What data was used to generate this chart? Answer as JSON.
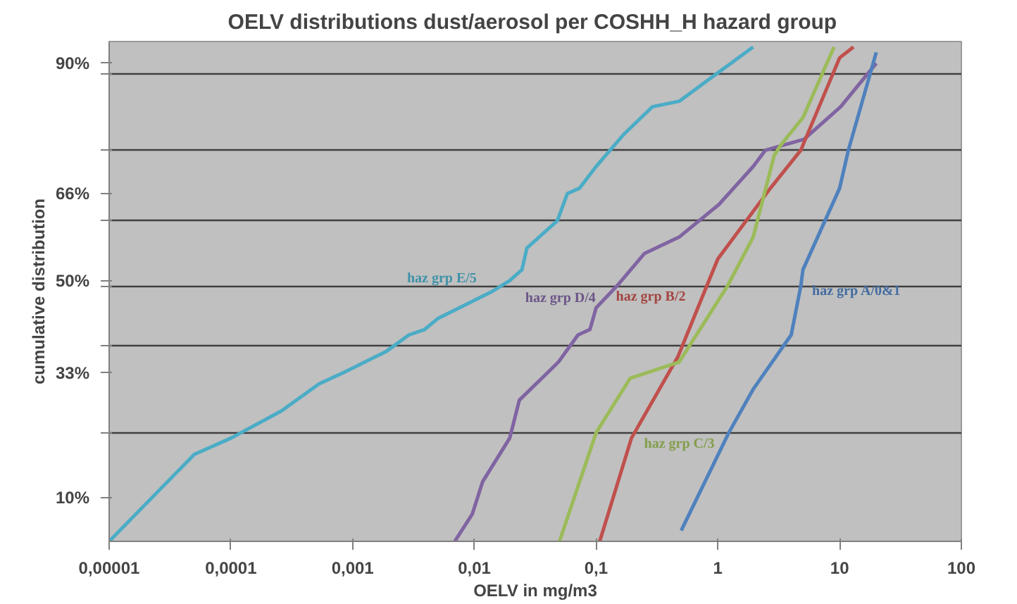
{
  "chart_data": {
    "type": "line",
    "title": "OELV distributions dust/aerosol per COSHH_H  hazard group",
    "xlabel": "OELV in mg/m3",
    "ylabel": "cumulative distribution",
    "log": "x",
    "grid": "y",
    "marker": "none",
    "line_style": "solid",
    "xlim": [
      1e-05,
      100
    ],
    "xticks": [
      {
        "value": 1e-05,
        "label": "0,00001"
      },
      {
        "value": 0.0001,
        "label": "0,0001"
      },
      {
        "value": 0.001,
        "label": "0,001"
      },
      {
        "value": 0.01,
        "label": "0,01"
      },
      {
        "value": 0.1,
        "label": "0,1"
      },
      1,
      10,
      100
    ],
    "ylim": [
      2,
      94
    ],
    "yticks": [
      {
        "value": 10,
        "label": "10%"
      },
      {
        "value": 22,
        "label": null
      },
      {
        "value": 33,
        "label": "33%"
      },
      {
        "value": 38,
        "label": null
      },
      {
        "value": 49,
        "label": null
      },
      {
        "value": 50,
        "label": "50%"
      },
      {
        "value": 61,
        "label": null
      },
      {
        "value": 66,
        "label": "66%"
      },
      {
        "value": 74,
        "label": null
      },
      {
        "value": 88,
        "label": null
      },
      {
        "value": 90,
        "label": "90%"
      }
    ],
    "series": [
      {
        "name": "haz  grp  E/5",
        "color": "#4bacc6",
        "x": [
          1e-05,
          5e-05,
          0.0001,
          0.00026,
          0.00053,
          0.00083,
          0.0019,
          0.0029,
          0.0039,
          0.005,
          0.014,
          0.0195,
          0.0246,
          0.027,
          0.048,
          0.058,
          0.073,
          0.1,
          0.17,
          0.29,
          0.48,
          1.95
        ],
        "values": [
          2,
          18,
          21,
          26,
          31,
          33,
          37,
          40,
          41,
          43,
          48,
          50,
          52,
          56,
          61,
          66,
          67,
          71,
          77,
          82,
          83,
          93
        ]
      },
      {
        "name": "haz  grp  D/4",
        "color": "#8064a2",
        "x": [
          0.0069,
          0.0096,
          0.0117,
          0.0195,
          0.0234,
          0.049,
          0.071,
          0.089,
          0.1,
          0.148,
          0.25,
          0.48,
          1.02,
          1.95,
          2.46,
          5.1,
          10.2,
          20
        ],
        "values": [
          2,
          7,
          13,
          21,
          28,
          35,
          40,
          41,
          45,
          49,
          55,
          58,
          64,
          71,
          74,
          76,
          82,
          90
        ]
      },
      {
        "name": "haz  grp  B/2",
        "color": "#c0504d",
        "x": [
          0.107,
          0.195,
          0.47,
          0.81,
          1.0,
          2.7,
          4.8,
          10,
          13
        ],
        "values": [
          2,
          21,
          36,
          49,
          54,
          67,
          74,
          91,
          93
        ]
      },
      {
        "name": "haz  grp  C/3",
        "color": "#9bbb59",
        "x": [
          0.05,
          0.1,
          0.19,
          0.48,
          1.2,
          1.95,
          2.9,
          3.3,
          5.0,
          9
        ],
        "values": [
          2,
          22,
          32,
          35,
          49,
          58,
          73,
          75,
          80,
          93
        ]
      },
      {
        "name": "haz  grp  A/0&1",
        "color": "#4f81bd",
        "x": [
          0.5,
          1.23,
          1.95,
          4.0,
          4.8,
          5.0,
          10,
          11.8,
          20
        ],
        "values": [
          4,
          22,
          30,
          40,
          49,
          52,
          67,
          74,
          92
        ]
      }
    ]
  }
}
